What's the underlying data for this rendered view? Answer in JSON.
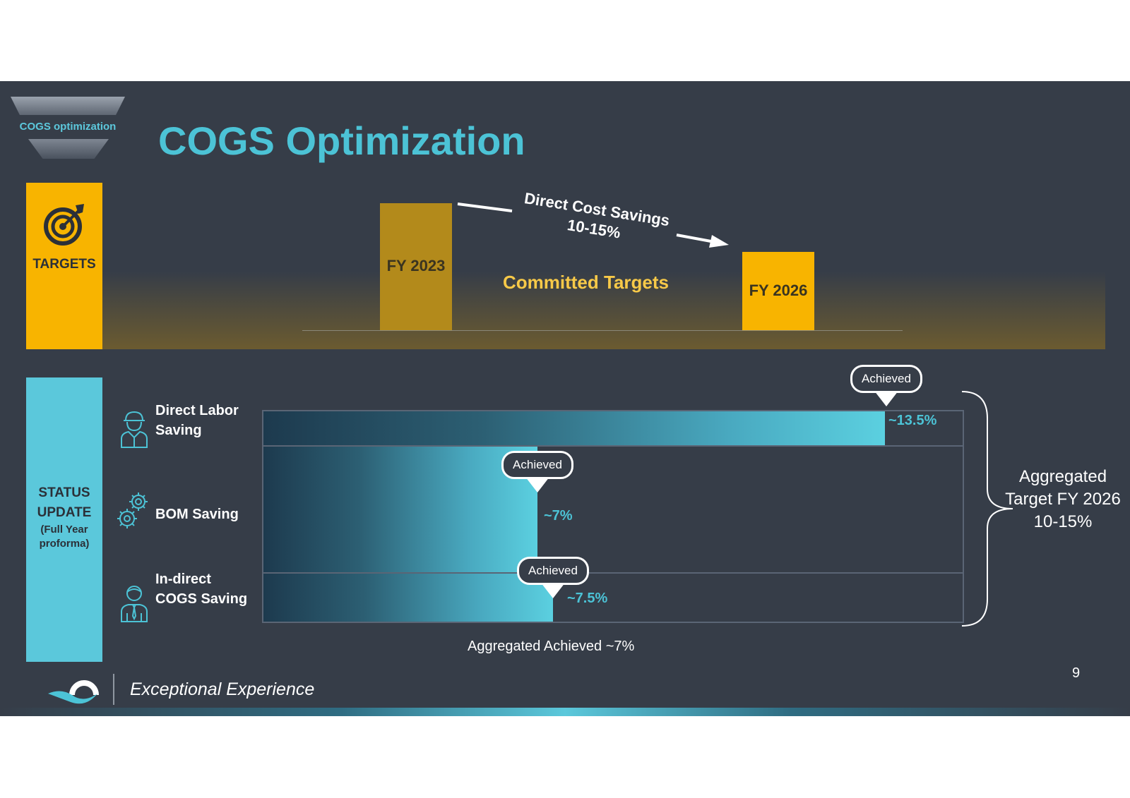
{
  "header": {
    "badge": "COGS optimization",
    "title": "COGS Optimization"
  },
  "targets": {
    "label": "TARGETS",
    "bars": [
      {
        "label": "FY 2023"
      },
      {
        "label": "FY 2026"
      }
    ],
    "savings_line1": "Direct Cost Savings",
    "savings_line2": "10-15%",
    "committed": "Committed Targets"
  },
  "status": {
    "label_line1": "STATUS",
    "label_line2": "UPDATE",
    "label_line3": "(Full Year",
    "label_line4": "proforma)",
    "rows": [
      {
        "label_line1": "Direct Labor",
        "label_line2": "Saving",
        "value": "~13.5%",
        "badge": "Achieved",
        "icon": "worker-icon"
      },
      {
        "label_line1": "BOM Saving",
        "label_line2": "",
        "value": "~7%",
        "badge": "Achieved",
        "icon": "gears-icon"
      },
      {
        "label_line1": "In-direct",
        "label_line2": "COGS  Saving",
        "value": "~7.5%",
        "badge": "Achieved",
        "icon": "employee-icon"
      }
    ],
    "aggregated_achieved": "Aggregated Achieved ~7%",
    "aggregated_target_line1": "Aggregated",
    "aggregated_target_line2": "Target FY 2026",
    "aggregated_target_line3": "10-15%"
  },
  "footer": {
    "tagline": "Exceptional Experience",
    "page_number": "9"
  },
  "colors": {
    "background": "#363d48",
    "accent_cyan": "#4cc3d6",
    "accent_yellow": "#f8b400"
  }
}
